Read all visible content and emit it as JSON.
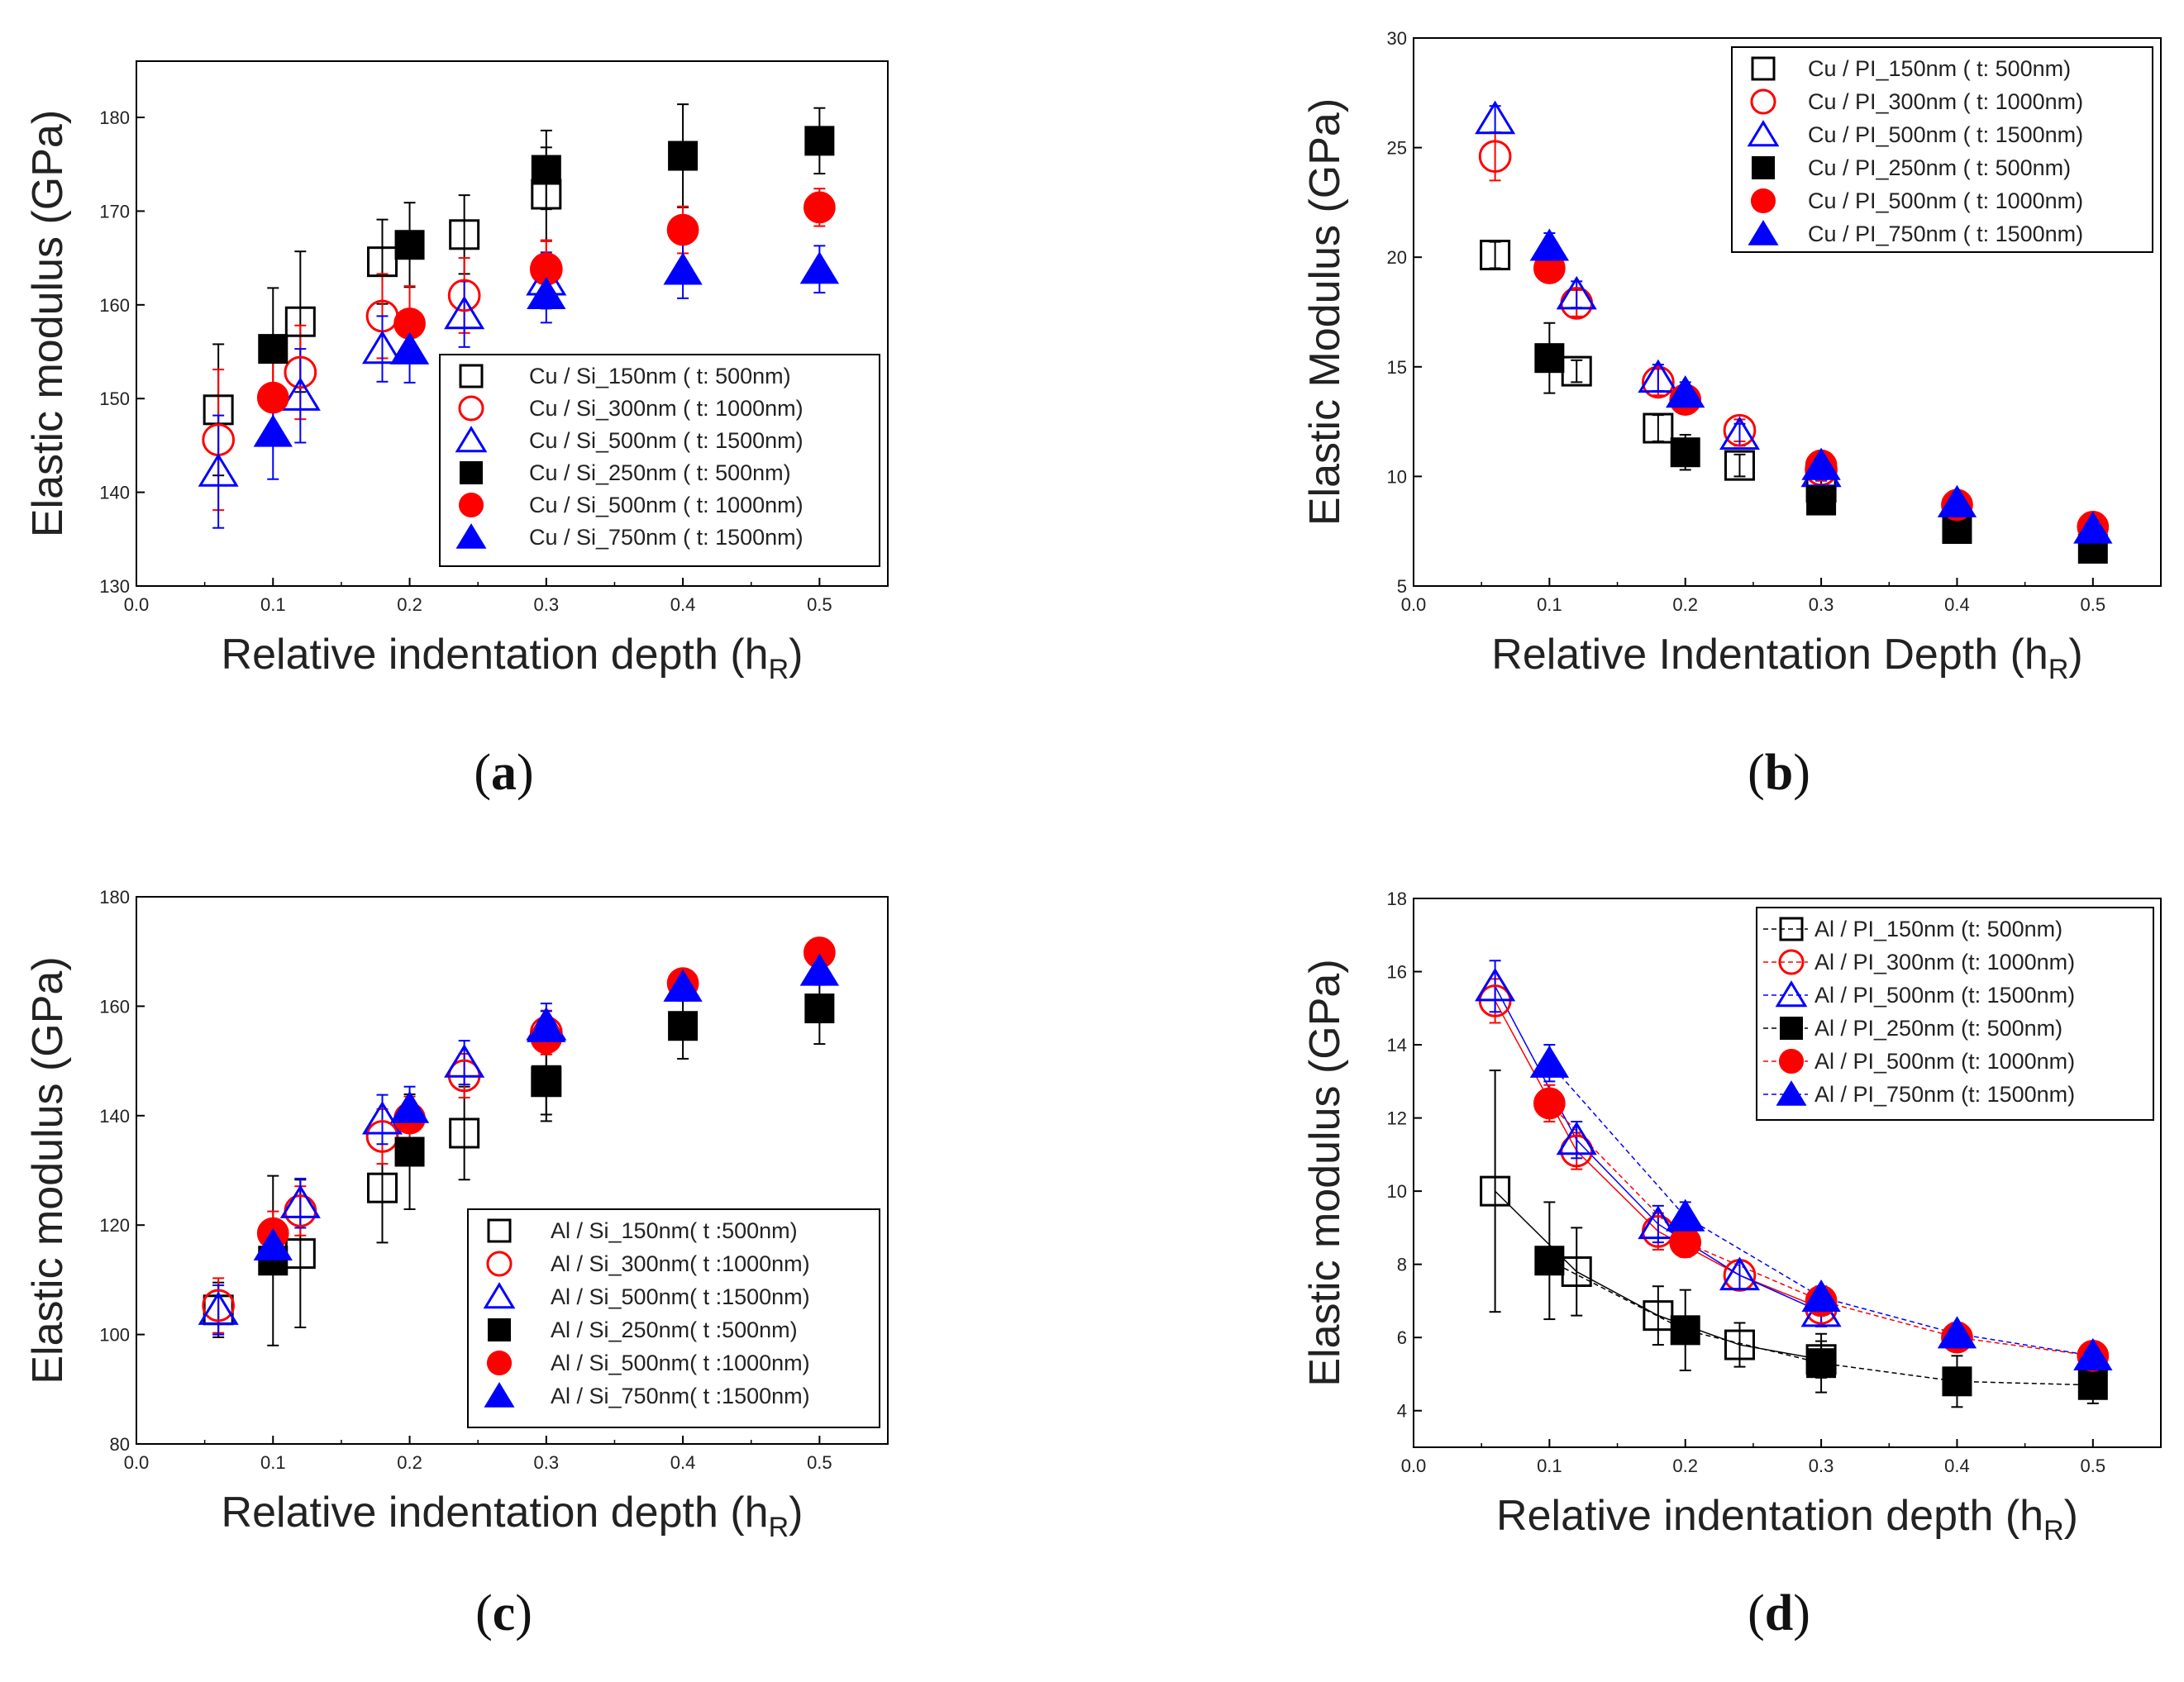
{
  "chart_data": [
    {
      "id": "a",
      "type": "scatter",
      "caption": "a",
      "xlabel": "Relative indentation depth (h",
      "xlabel_sub": "R",
      "xlabel_end": ")",
      "ylabel": "Elastic modulus (GPa)",
      "xlim": [
        0.0,
        0.55
      ],
      "ylim": [
        130,
        186
      ],
      "xticks": [
        "0.0",
        "0.1",
        "0.2",
        "0.3",
        "0.4",
        "0.5"
      ],
      "yticks": [
        "130",
        "140",
        "150",
        "160",
        "170",
        "180"
      ],
      "xtick_values": [
        0.0,
        0.1,
        0.2,
        0.3,
        0.4,
        0.5
      ],
      "ytick_values": [
        130,
        140,
        150,
        160,
        170,
        180
      ],
      "lines": false,
      "legend_position": "lower-right",
      "series": [
        {
          "name": "Cu / Si_150nm ( t: 500nm)",
          "marker": "square",
          "filled": false,
          "color": "#000000",
          "x": [
            0.06,
            0.12,
            0.18,
            0.24,
            0.3
          ],
          "y": [
            148.8,
            158.2,
            164.6,
            167.5,
            171.8
          ],
          "err": [
            7,
            7.5,
            4.5,
            4.2,
            5
          ]
        },
        {
          "name": "Cu / Si_300nm ( t: 1000nm)",
          "marker": "circle",
          "filled": false,
          "color": "#ff0000",
          "x": [
            0.06,
            0.12,
            0.18,
            0.24,
            0.3
          ],
          "y": [
            145.6,
            152.8,
            158.8,
            161,
            163.8
          ],
          "err": [
            7.5,
            5,
            4.5,
            4,
            3
          ]
        },
        {
          "name": "Cu / Si_500nm ( t: 1500nm)",
          "marker": "triangle",
          "filled": false,
          "color": "#0000ff",
          "x": [
            0.06,
            0.12,
            0.18,
            0.24,
            0.3
          ],
          "y": [
            142.2,
            150.3,
            155.3,
            159,
            162.6
          ],
          "err": [
            6,
            5,
            3.5,
            3.5,
            3
          ]
        },
        {
          "name": "Cu / Si_250nm ( t: 500nm)",
          "marker": "square",
          "filled": true,
          "color": "#000000",
          "x": [
            0.1,
            0.2,
            0.3,
            0.4,
            0.5
          ],
          "y": [
            155.3,
            166.4,
            174.4,
            175.9,
            177.5
          ],
          "err": [
            6.5,
            4.5,
            4.2,
            5.5,
            3.5
          ]
        },
        {
          "name": "Cu / Si_500nm ( t: 1000nm)",
          "marker": "circle",
          "filled": true,
          "color": "#ff0000",
          "x": [
            0.1,
            0.2,
            0.3,
            0.4,
            0.5
          ],
          "y": [
            150.1,
            158,
            163.9,
            168,
            170.4
          ],
          "err": [
            5,
            4,
            3,
            2.5,
            2
          ]
        },
        {
          "name": "Cu / Si_750nm ( t: 1500nm)",
          "marker": "triangle",
          "filled": true,
          "color": "#0000ff",
          "x": [
            0.1,
            0.2,
            0.3,
            0.4,
            0.5
          ],
          "y": [
            146.4,
            155.2,
            161.1,
            163.7,
            163.8
          ],
          "err": [
            5,
            3.5,
            3,
            3,
            2.5
          ]
        }
      ]
    },
    {
      "id": "b",
      "type": "scatter",
      "caption": "b",
      "xlabel": "Relative Indentation Depth (h",
      "xlabel_sub": "R",
      "xlabel_end": ")",
      "ylabel": "Elastic Modulus (GPa)",
      "xlim": [
        0.0,
        0.55
      ],
      "ylim": [
        5,
        30
      ],
      "xticks": [
        "0.0",
        "0.1",
        "0.2",
        "0.3",
        "0.4",
        "0.5"
      ],
      "yticks": [
        "5",
        "10",
        "15",
        "20",
        "25",
        "30"
      ],
      "xtick_values": [
        0.0,
        0.1,
        0.2,
        0.3,
        0.4,
        0.5
      ],
      "ytick_values": [
        5,
        10,
        15,
        20,
        25,
        30
      ],
      "lines": false,
      "legend_position": "top-right",
      "series": [
        {
          "name": "Cu / PI_150nm ( t: 500nm)",
          "marker": "square",
          "filled": false,
          "color": "#000000",
          "x": [
            0.06,
            0.12,
            0.18,
            0.24,
            0.3
          ],
          "y": [
            20.1,
            14.8,
            12.2,
            10.5,
            9.5
          ],
          "err": [
            0.6,
            0.5,
            0.6,
            0.5,
            0.4
          ]
        },
        {
          "name": "Cu / PI_300nm ( t: 1000nm)",
          "marker": "circle",
          "filled": false,
          "color": "#ff0000",
          "x": [
            0.06,
            0.12,
            0.18,
            0.24,
            0.3
          ],
          "y": [
            24.6,
            17.9,
            14.3,
            12.1,
            10.3
          ],
          "err": [
            1.1,
            0.6,
            0.6,
            0.5,
            0.4
          ]
        },
        {
          "name": "Cu / PI_500nm ( t: 1500nm)",
          "marker": "triangle",
          "filled": false,
          "color": "#0000ff",
          "x": [
            0.06,
            0.12,
            0.18,
            0.24,
            0.3
          ],
          "y": [
            26.3,
            18.3,
            14.5,
            11.9,
            10.2
          ],
          "err": [
            0.6,
            0.6,
            0.6,
            0.5,
            0.4
          ]
        },
        {
          "name": "Cu / PI_250nm ( t: 500nm)",
          "marker": "square",
          "filled": true,
          "color": "#000000",
          "x": [
            0.1,
            0.2,
            0.3,
            0.4,
            0.5
          ],
          "y": [
            15.4,
            11.1,
            8.9,
            7.6,
            6.7
          ],
          "err": [
            1.6,
            0.8,
            0.5,
            0.4,
            0.3
          ]
        },
        {
          "name": "Cu / PI_500nm ( t: 1000nm)",
          "marker": "circle",
          "filled": true,
          "color": "#ff0000",
          "x": [
            0.1,
            0.2,
            0.3,
            0.4,
            0.5
          ],
          "y": [
            19.5,
            13.5,
            10.5,
            8.7,
            7.7
          ],
          "err": [
            0.6,
            0.5,
            0.4,
            0.3,
            0.3
          ]
        },
        {
          "name": "Cu / PI_750nm ( t: 1500nm)",
          "marker": "triangle",
          "filled": true,
          "color": "#0000ff",
          "x": [
            0.1,
            0.2,
            0.3,
            0.4,
            0.5
          ],
          "y": [
            20.5,
            13.8,
            10.5,
            8.8,
            7.6
          ],
          "err": [
            0.6,
            0.5,
            0.4,
            0.3,
            0.3
          ]
        }
      ]
    },
    {
      "id": "c",
      "type": "scatter",
      "caption": "c",
      "xlabel": "Relative indentation depth (h",
      "xlabel_sub": "R",
      "xlabel_end": ")",
      "ylabel": "Elastic modulus (GPa)",
      "xlim": [
        0.0,
        0.55
      ],
      "ylim": [
        80,
        180
      ],
      "xticks": [
        "0.0",
        "0.1",
        "0.2",
        "0.3",
        "0.4",
        "0.5"
      ],
      "yticks": [
        "80",
        "100",
        "120",
        "140",
        "160",
        "180"
      ],
      "xtick_values": [
        0.0,
        0.1,
        0.2,
        0.3,
        0.4,
        0.5
      ],
      "ytick_values": [
        80,
        100,
        120,
        140,
        160,
        180
      ],
      "lines": false,
      "legend_position": "lower-right",
      "series": [
        {
          "name": "Al / Si_150nm( t :500nm)",
          "marker": "square",
          "filled": false,
          "color": "#000000",
          "x": [
            0.06,
            0.12,
            0.18,
            0.24,
            0.3
          ],
          "y": [
            104.5,
            114.8,
            126.8,
            136.8,
            146.2
          ],
          "err": [
            5,
            13.5,
            10,
            8.5,
            6
          ]
        },
        {
          "name": "Al / Si_300nm( t :1000nm)",
          "marker": "circle",
          "filled": false,
          "color": "#ff0000",
          "x": [
            0.06,
            0.12,
            0.18,
            0.24,
            0.3
          ],
          "y": [
            105.3,
            122.6,
            136.2,
            147.3,
            155.2
          ],
          "err": [
            5,
            4.5,
            5,
            4,
            4
          ]
        },
        {
          "name": "Al / Si_500nm( t :1500nm)",
          "marker": "triangle",
          "filled": false,
          "color": "#0000ff",
          "x": [
            0.06,
            0.12,
            0.18,
            0.24,
            0.3
          ],
          "y": [
            104.5,
            124,
            139.3,
            149.7,
            156.5
          ],
          "err": [
            4.5,
            4.5,
            4.5,
            4,
            4
          ]
        },
        {
          "name": "Al / Si_250nm( t :500nm)",
          "marker": "square",
          "filled": true,
          "color": "#000000",
          "x": [
            0.1,
            0.2,
            0.3,
            0.4,
            0.5
          ],
          "y": [
            113.5,
            133.4,
            146.5,
            156.4,
            159.6
          ],
          "err": [
            15.5,
            10.5,
            7.5,
            6,
            6.5
          ]
        },
        {
          "name": "Al / Si_500nm( t :1000nm)",
          "marker": "circle",
          "filled": true,
          "color": "#ff0000",
          "x": [
            0.1,
            0.2,
            0.3,
            0.4,
            0.5
          ],
          "y": [
            118.5,
            139.5,
            154.2,
            164.2,
            169.8
          ],
          "err": [
            4,
            4,
            3,
            2.5,
            2.5
          ]
        },
        {
          "name": "Al / Si_750nm( t :1500nm)",
          "marker": "triangle",
          "filled": true,
          "color": "#0000ff",
          "x": [
            0.1,
            0.2,
            0.3,
            0.4,
            0.5
          ],
          "y": [
            116.2,
            141.3,
            156.1,
            163.5,
            166.4
          ],
          "err": [
            4,
            4,
            3,
            2.5,
            2.5
          ]
        }
      ]
    },
    {
      "id": "d",
      "type": "line",
      "caption": "d",
      "xlabel": "Relative indentation depth (h",
      "xlabel_sub": "R",
      "xlabel_end": ")",
      "ylabel": "Elastic modulus (GPa)",
      "xlim": [
        0.0,
        0.55
      ],
      "ylim": [
        3,
        18
      ],
      "xticks": [
        "0.0",
        "0.1",
        "0.2",
        "0.3",
        "0.4",
        "0.5"
      ],
      "yticks": [
        "4",
        "6",
        "8",
        "10",
        "12",
        "14",
        "16",
        "18"
      ],
      "xtick_values": [
        0.0,
        0.1,
        0.2,
        0.3,
        0.4,
        0.5
      ],
      "ytick_values": [
        4,
        6,
        8,
        10,
        12,
        14,
        16,
        18
      ],
      "lines": true,
      "legend_position": "top-right",
      "series": [
        {
          "name": "Al / PI_150nm (t: 500nm)",
          "marker": "square",
          "filled": false,
          "color": "#000000",
          "x": [
            0.06,
            0.12,
            0.18,
            0.24,
            0.3
          ],
          "y": [
            10,
            7.8,
            6.6,
            5.8,
            5.4
          ],
          "err": [
            3.3,
            1.2,
            0.8,
            0.6,
            0.5
          ]
        },
        {
          "name": "Al / PI_300nm (t: 1000nm)",
          "marker": "circle",
          "filled": false,
          "color": "#ff0000",
          "x": [
            0.06,
            0.12,
            0.18,
            0.24,
            0.3
          ],
          "y": [
            15.2,
            11.1,
            8.9,
            7.7,
            6.8
          ],
          "err": [
            0.6,
            0.5,
            0.5,
            0.4,
            0.4
          ]
        },
        {
          "name": "Al / PI_500nm (t: 1500nm)",
          "marker": "triangle",
          "filled": false,
          "color": "#0000ff",
          "x": [
            0.06,
            0.12,
            0.18,
            0.24,
            0.3
          ],
          "y": [
            15.6,
            11.4,
            9.1,
            7.7,
            6.7
          ],
          "err": [
            0.7,
            0.5,
            0.5,
            0.4,
            0.4
          ]
        },
        {
          "name": "Al / PI_250nm (t: 500nm)",
          "marker": "square",
          "filled": true,
          "color": "#000000",
          "x": [
            0.1,
            0.2,
            0.3,
            0.4,
            0.5
          ],
          "y": [
            8.1,
            6.2,
            5.3,
            4.8,
            4.7
          ],
          "err": [
            1.6,
            1.1,
            0.8,
            0.7,
            0.5
          ]
        },
        {
          "name": "Al / PI_500nm (t: 1000nm)",
          "marker": "circle",
          "filled": true,
          "color": "#ff0000",
          "x": [
            0.1,
            0.2,
            0.3,
            0.4,
            0.5
          ],
          "y": [
            12.4,
            8.6,
            7,
            6,
            5.5
          ],
          "err": [
            0.5,
            0.4,
            0.3,
            0.3,
            0.3
          ]
        },
        {
          "name": "Al / PI_750nm (t: 1500nm)",
          "marker": "triangle",
          "filled": true,
          "color": "#0000ff",
          "x": [
            0.1,
            0.2,
            0.3,
            0.4,
            0.5
          ],
          "y": [
            13.5,
            9.3,
            7.1,
            6.1,
            5.5
          ],
          "err": [
            0.5,
            0.4,
            0.3,
            0.3,
            0.3
          ]
        }
      ]
    }
  ]
}
